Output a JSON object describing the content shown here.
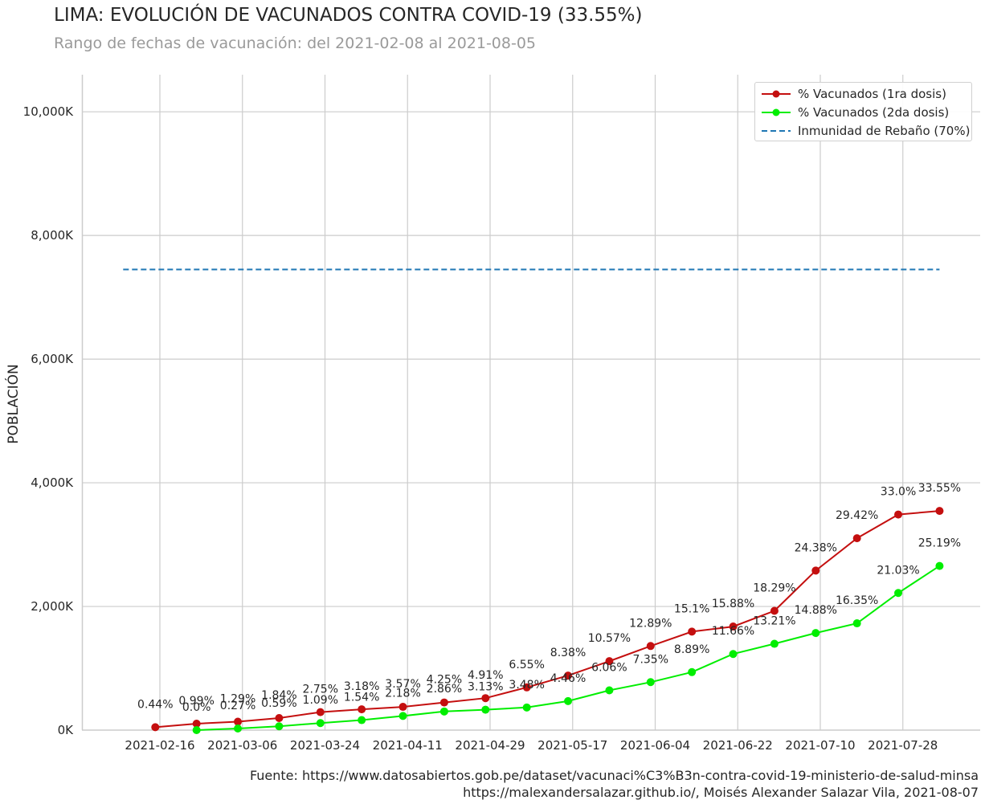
{
  "title": "LIMA: EVOLUCIÓN DE VACUNADOS CONTRA COVID-19 (33.55%)",
  "subtitle": "Rango de fechas de vacunación: del 2021-02-08 al 2021-08-05",
  "footer": {
    "line1": "Fuente: https://www.datosabiertos.gob.pe/dataset/vacunaci%C3%B3n-contra-covid-19-ministerio-de-salud-minsa",
    "line2": "https://malexandersalazar.github.io/, Moisés Alexander Salazar Vila, 2021-08-07"
  },
  "chart_data": {
    "type": "line",
    "xlabel": "",
    "ylabel": "POBLACIÓN",
    "ylim": [
      0,
      10600
    ],
    "y_unit": "thousands of people",
    "yticks": [
      0,
      2000,
      4000,
      6000,
      8000,
      10000
    ],
    "ytick_labels": [
      "0K",
      "2,000K",
      "4,000K",
      "6,000K",
      "8,000K",
      "10,000K"
    ],
    "xticks": [
      "2021-02-16",
      "2021-03-06",
      "2021-03-24",
      "2021-04-11",
      "2021-04-29",
      "2021-05-17",
      "2021-06-04",
      "2021-06-22",
      "2021-07-10",
      "2021-07-28"
    ],
    "grid": true,
    "legend_position": "top-right",
    "x": [
      "2021-02-15",
      "2021-02-24",
      "2021-03-05",
      "2021-03-14",
      "2021-03-23",
      "2021-04-01",
      "2021-04-10",
      "2021-04-19",
      "2021-04-28",
      "2021-05-07",
      "2021-05-16",
      "2021-05-25",
      "2021-06-03",
      "2021-06-12",
      "2021-06-21",
      "2021-06-30",
      "2021-07-09",
      "2021-07-18",
      "2021-07-27",
      "2021-08-05"
    ],
    "series": [
      {
        "name": "% Vacunados (1ra dosis)",
        "color": "#c40f0f",
        "marker": "circle",
        "values": [
          47,
          104,
          136,
          195,
          291,
          336,
          376,
          447,
          517,
          691,
          882,
          1115,
          1360,
          1593,
          1675,
          1929,
          2580,
          3103,
          3487,
          3545
        ],
        "labels": [
          "0.44%",
          "0.99%",
          "1.29%",
          "1.84%",
          "2.75%",
          "3.18%",
          "3.57%",
          "4.25%",
          "4.91%",
          "6.55%",
          "8.38%",
          "10.57%",
          "12.89%",
          "15.1%",
          "15.88%",
          "18.29%",
          "24.38%",
          "29.42%",
          "33.0%",
          "33.55%"
        ]
      },
      {
        "name": "% Vacunados (2da dosis)",
        "color": "#00ee00",
        "marker": "circle",
        "x": [
          "2021-02-24",
          "2021-03-05",
          "2021-03-14",
          "2021-03-23",
          "2021-04-01",
          "2021-04-10",
          "2021-04-19",
          "2021-04-28",
          "2021-05-07",
          "2021-05-16",
          "2021-05-25",
          "2021-06-03",
          "2021-06-12",
          "2021-06-21",
          "2021-06-30",
          "2021-07-09",
          "2021-07-18",
          "2021-07-27",
          "2021-08-05"
        ],
        "values": [
          0,
          26,
          62,
          114,
          162,
          229,
          301,
          330,
          366,
          469,
          643,
          776,
          938,
          1231,
          1396,
          1570,
          1727,
          2218,
          2655
        ],
        "labels": [
          "0.0%",
          "0.27%",
          "0.59%",
          "1.09%",
          "1.54%",
          "2.18%",
          "2.86%",
          "3.13%",
          "3.48%",
          "4.46%",
          "6.06%",
          "7.35%",
          "8.89%",
          "11.66%",
          "13.21%",
          "14.88%",
          "16.35%",
          "21.03%",
          "25.19%"
        ]
      },
      {
        "name": "Inmunidad de Rebaño (70%)",
        "color": "#1f77b4",
        "style": "dashed",
        "x": [
          "2021-02-08",
          "2021-08-05"
        ],
        "values": [
          7450,
          7450
        ]
      }
    ]
  }
}
